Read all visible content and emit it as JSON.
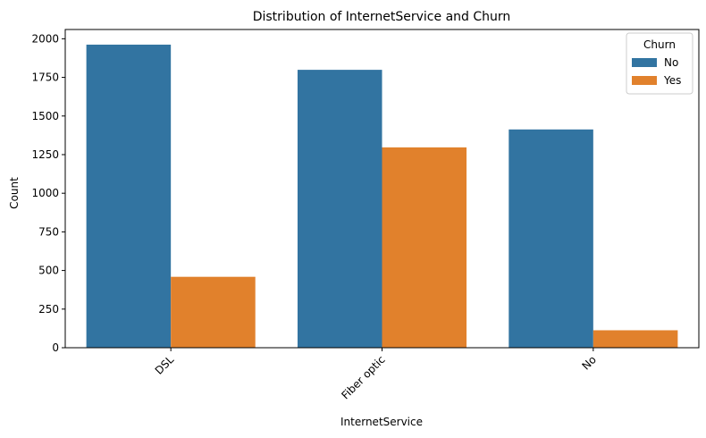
{
  "chart_data": {
    "type": "bar",
    "title": "Distribution of InternetService and Churn",
    "xlabel": "InternetService",
    "ylabel": "Count",
    "categories": [
      "DSL",
      "Fiber optic",
      "No"
    ],
    "series": [
      {
        "name": "No",
        "values": [
          1962,
          1799,
          1413
        ],
        "color": "#3274a1"
      },
      {
        "name": "Yes",
        "values": [
          459,
          1297,
          113
        ],
        "color": "#e1812c"
      }
    ],
    "ylim": [
      0,
      2060
    ],
    "yticks": [
      0,
      250,
      500,
      750,
      1000,
      1250,
      1500,
      1750,
      2000
    ],
    "ytick_labels": [
      "0",
      "250",
      "500",
      "750",
      "1000",
      "1250",
      "1500",
      "1750",
      "2000"
    ],
    "legend": {
      "title": "Churn",
      "placement": "top-right"
    },
    "grid": false
  }
}
